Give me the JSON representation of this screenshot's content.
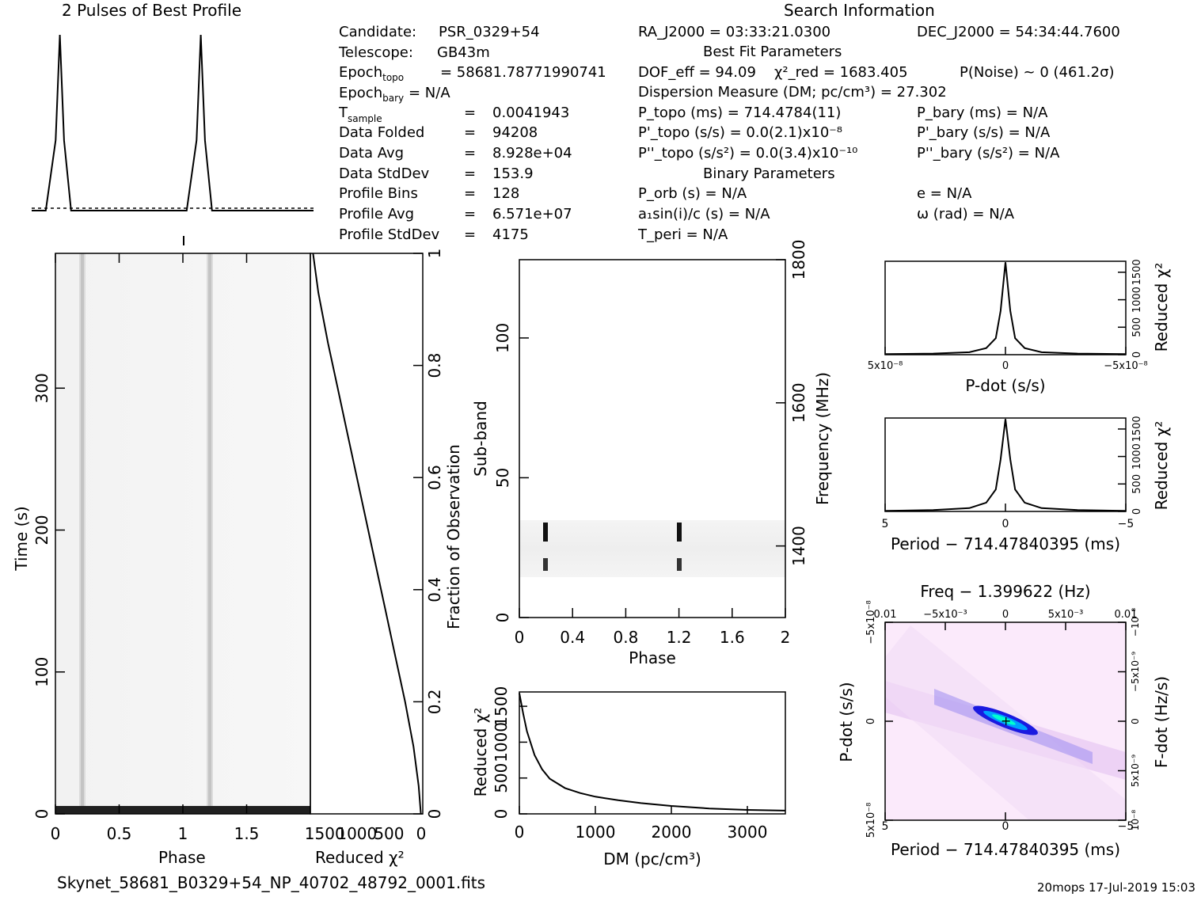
{
  "header": {
    "profile_title": "2 Pulses of Best Profile",
    "search_title": "Search Information",
    "best_fit_title": "Best Fit Parameters",
    "binary_title": "Binary Parameters"
  },
  "candidate_info": [
    {
      "label": "Candidate:",
      "value": "PSR_0329+54"
    },
    {
      "label": "Telescope:",
      "value": "GB43m"
    },
    {
      "label": "Epoch_topo",
      "value": "= 58681.78771990741"
    },
    {
      "label": "Epoch_bary",
      "value": "= N/A"
    },
    {
      "label": "T_sample",
      "value": "0.0041943"
    },
    {
      "label": "Data Folded",
      "value": "94208"
    },
    {
      "label": "Data Avg",
      "value": "8.928e+04"
    },
    {
      "label": "Data StdDev",
      "value": "153.9"
    },
    {
      "label": "Profile Bins",
      "value": "128"
    },
    {
      "label": "Profile Avg",
      "value": "6.571e+07"
    },
    {
      "label": "Profile StdDev",
      "value": "4175"
    }
  ],
  "search_info": {
    "ra": "RA_J2000 = 03:33:21.0300",
    "dec": "DEC_J2000 = 54:34:44.7600",
    "dof": "DOF_eff = 94.09",
    "chi2": "χ²_red = 1683.405",
    "pnoise": "P(Noise) ~ 0   (461.2σ)",
    "dm": "Dispersion Measure (DM; pc/cm³) = 27.302",
    "ptopo": "P_topo (ms) =  714.4784(11)",
    "pbary": "P_bary (ms) = N/A",
    "pdtopo": "P'_topo (s/s) = 0.0(2.1)x10⁻⁸",
    "pdbary": "P'_bary (s/s) = N/A",
    "pddtopo": "P''_topo (s/s²) = 0.0(3.4)x10⁻¹⁰",
    "pddbary": "P''_bary (s/s²) = N/A",
    "porb": "P_orb (s) = N/A",
    "ecc": "e = N/A",
    "asini": "a₁sin(i)/c (s) = N/A",
    "omega": "ω (rad) = N/A",
    "tperi": "T_peri = N/A"
  },
  "footer": {
    "filename": "Skynet_58681_B0329+54_NP_40702_48792_0001.fits",
    "stamp": "20mops 17-Jul-2019 15:03"
  },
  "colors": {
    "axis": "#000000",
    "trace": "#000000",
    "map_hot": "#00e0ff",
    "map_mid": "#2020ff",
    "map_bg": "#fbe8fb"
  },
  "chart_data": [
    {
      "type": "line",
      "name": "profile",
      "title": "2 Pulses of Best Profile",
      "x": [
        0,
        0.1,
        0.17,
        0.2,
        0.23,
        0.28,
        0.4,
        0.6,
        0.8,
        1.0,
        1.1,
        1.17,
        1.2,
        1.23,
        1.28,
        1.4,
        1.6,
        1.8,
        2.0
      ],
      "y": [
        0,
        0,
        0.4,
        1.0,
        0.4,
        0,
        0,
        0,
        0,
        0,
        0,
        0.4,
        1.0,
        0.4,
        0,
        0,
        0,
        0,
        0
      ]
    },
    {
      "type": "heatmap",
      "name": "time-phase",
      "xlabel": "Phase",
      "ylabel": "Time (s)",
      "xlim": [
        0,
        2
      ],
      "ylim": [
        0,
        395
      ],
      "x_ticks": [
        "0",
        "0.5",
        "1",
        "1.5"
      ],
      "y_ticks": [
        "0",
        "100",
        "200",
        "300"
      ],
      "pulse_phases": [
        0.2,
        1.2
      ]
    },
    {
      "type": "line",
      "name": "reduced-chi2-vs-time",
      "xlabel": "Reduced χ²",
      "ylabel": "Fraction of Observation",
      "xlim": [
        1700,
        0
      ],
      "ylim": [
        0,
        1
      ],
      "x_ticks": [
        "1500",
        "1000",
        "500",
        "0"
      ],
      "y_ticks": [
        "0",
        "0.2",
        "0.4",
        "0.6",
        "0.8",
        "1"
      ],
      "x": [
        1683,
        1600,
        1450,
        1300,
        1150,
        1000,
        850,
        700,
        550,
        400,
        250,
        120,
        40,
        5
      ],
      "y": [
        1.0,
        0.93,
        0.84,
        0.76,
        0.68,
        0.6,
        0.52,
        0.44,
        0.36,
        0.28,
        0.2,
        0.12,
        0.05,
        0.0
      ]
    },
    {
      "type": "heatmap",
      "name": "subband-phase",
      "xlabel": "Phase",
      "ylabel": "Sub-band",
      "y2label": "Frequency (MHz)",
      "xlim": [
        0,
        2
      ],
      "ylim": [
        0,
        128
      ],
      "x_ticks": [
        "0",
        "0.4",
        "0.8",
        "1.2",
        "1.6",
        "2"
      ],
      "y_ticks": [
        "0",
        "50",
        "100"
      ],
      "y2_ticks": [
        "1400",
        "1600",
        "1800"
      ],
      "active_subbands": [
        15,
        34
      ],
      "pulse_phases": [
        0.2,
        1.2
      ]
    },
    {
      "type": "line",
      "name": "dm-curve",
      "xlabel": "DM (pc/cm³)",
      "ylabel": "Reduced χ²",
      "xlim": [
        0,
        3500
      ],
      "ylim": [
        0,
        1700
      ],
      "x_ticks": [
        "0",
        "1000",
        "2000",
        "3000"
      ],
      "y_ticks": [
        "0",
        "500",
        "1000",
        "1500"
      ],
      "x": [
        0,
        50,
        100,
        200,
        300,
        400,
        600,
        800,
        1000,
        1300,
        1600,
        2000,
        2500,
        3000,
        3500
      ],
      "y": [
        1683,
        1400,
        1150,
        820,
        620,
        490,
        360,
        290,
        240,
        190,
        150,
        110,
        75,
        55,
        45
      ]
    },
    {
      "type": "line",
      "name": "pdot-curve",
      "xlabel": "P-dot (s/s)",
      "ylabel": "Reduced χ²",
      "xlim": [
        5e-08,
        -5e-08
      ],
      "ylim": [
        0,
        1700
      ],
      "x_ticks": [
        "5x10⁻⁸",
        "0",
        "−5x10⁻⁸"
      ],
      "y_ticks": [
        "0",
        "500",
        "1000",
        "1500"
      ],
      "x": [
        5e-08,
        3e-08,
        1.5e-08,
        8e-09,
        4e-09,
        2e-09,
        0,
        -2e-09,
        -4e-09,
        -8e-09,
        -1.5e-08,
        -3e-08,
        -5e-08
      ],
      "y": [
        10,
        20,
        45,
        120,
        300,
        800,
        1683,
        800,
        300,
        120,
        45,
        20,
        10
      ]
    },
    {
      "type": "line",
      "name": "period-curve",
      "xlabel": "Period − 714.47840395 (ms)",
      "ylabel": "Reduced χ²",
      "xlim": [
        5,
        -5
      ],
      "ylim": [
        0,
        1700
      ],
      "x_ticks": [
        "5",
        "0",
        "−5"
      ],
      "y_ticks": [
        "0",
        "500",
        "1000",
        "1500"
      ],
      "x": [
        5,
        3,
        1.5,
        0.8,
        0.4,
        0.2,
        0,
        -0.2,
        -0.4,
        -0.8,
        -1.5,
        -3,
        -5
      ],
      "y": [
        10,
        25,
        60,
        160,
        400,
        950,
        1683,
        950,
        400,
        160,
        60,
        25,
        10
      ]
    },
    {
      "type": "heatmap",
      "name": "pdot-period-plane",
      "title": "Freq − 1.399622 (Hz)",
      "xlabel": "Period − 714.47840395 (ms)",
      "ylabel": "P-dot (s/s)",
      "y2label": "F-dot (Hz/s)",
      "xlim": [
        5,
        -5
      ],
      "ylim": [
        5e-08,
        -5e-08
      ],
      "x_ticks": [
        "5",
        "0",
        "−5"
      ],
      "x2_ticks": [
        "0.01",
        "−5x10⁻³",
        "0",
        "5x10⁻³",
        "0.01"
      ],
      "y_ticks": [
        "5x10⁻⁸",
        "0",
        "−5x10⁻⁸"
      ],
      "y2_ticks": [
        "−10⁻⁸",
        "−5x10⁻⁹",
        "0",
        "5x10⁻⁹",
        "10⁻⁸"
      ]
    }
  ]
}
